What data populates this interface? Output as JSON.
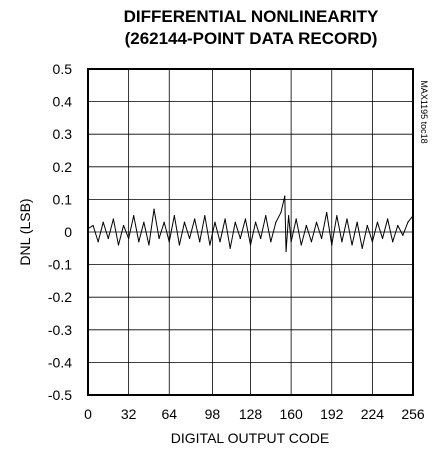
{
  "chart_data": {
    "type": "line",
    "title": "DIFFERENTIAL NONLINEARITY",
    "subtitle": "(262144-POINT DATA RECORD)",
    "xlabel": "DIGITAL OUTPUT CODE",
    "ylabel": "DNL (LSB)",
    "side_tag": "MAX1195 toc18",
    "xlim": [
      0,
      256
    ],
    "ylim": [
      -0.5,
      0.5
    ],
    "grid": true,
    "x_ticks": [
      0,
      32,
      64,
      98,
      128,
      160,
      192,
      224,
      256
    ],
    "x_tick_labels": [
      "0",
      "32",
      "64",
      "98",
      "128",
      "160",
      "192",
      "224",
      "256"
    ],
    "y_ticks": [
      0.5,
      0.4,
      0.3,
      0.2,
      0.1,
      0,
      -0.1,
      -0.2,
      -0.3,
      -0.4,
      -0.5
    ],
    "y_tick_labels": [
      "0.5",
      "0.4",
      "0.3",
      "0.2",
      "0.1",
      "0",
      "-0.1",
      "-0.2",
      "-0.3",
      "-0.4",
      "-0.5"
    ],
    "series": [
      {
        "x": [
          0,
          4,
          8,
          12,
          16,
          20,
          24,
          28,
          32,
          36,
          40,
          44,
          48,
          52,
          56,
          60,
          64,
          68,
          72,
          76,
          80,
          84,
          88,
          92,
          96,
          100,
          104,
          108,
          112,
          116,
          120,
          124,
          128,
          132,
          136,
          140,
          144,
          148,
          152,
          155,
          156,
          158,
          160,
          164,
          168,
          172,
          176,
          180,
          184,
          188,
          192,
          196,
          200,
          204,
          208,
          212,
          216,
          220,
          224,
          228,
          232,
          236,
          240,
          244,
          248,
          252,
          256
        ],
        "values": [
          0.01,
          0.02,
          -0.03,
          0.03,
          -0.02,
          0.04,
          -0.04,
          0.02,
          -0.02,
          0.05,
          -0.03,
          0.03,
          -0.04,
          0.07,
          -0.02,
          0.03,
          -0.03,
          0.05,
          -0.04,
          0.03,
          -0.02,
          0.04,
          -0.03,
          0.05,
          -0.04,
          0.03,
          -0.03,
          0.04,
          -0.05,
          0.03,
          -0.02,
          0.04,
          -0.04,
          0.03,
          -0.02,
          0.05,
          -0.03,
          0.03,
          0.06,
          0.11,
          -0.06,
          0.05,
          -0.03,
          0.04,
          -0.04,
          0.02,
          -0.03,
          0.03,
          -0.02,
          0.06,
          -0.04,
          0.05,
          -0.03,
          0.04,
          -0.04,
          0.03,
          -0.05,
          0.02,
          -0.03,
          0.03,
          -0.02,
          0.04,
          -0.03,
          0.02,
          -0.01,
          0.03,
          0.05
        ]
      }
    ]
  }
}
